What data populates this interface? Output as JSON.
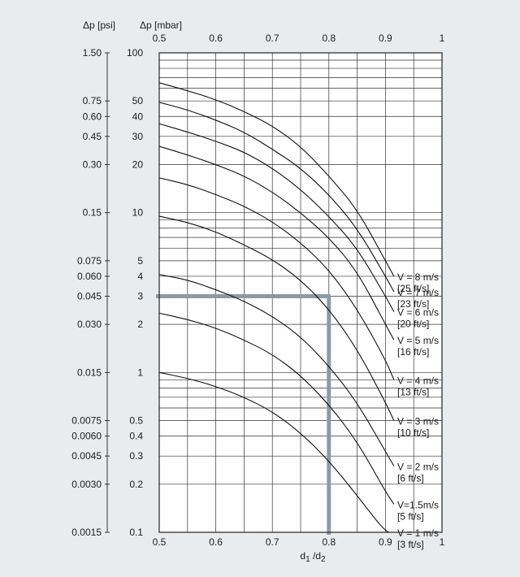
{
  "chart_data": {
    "type": "line",
    "y_scale": "log",
    "xlim": [
      0.5,
      1.0
    ],
    "ylim_mbar": [
      0.1,
      100
    ],
    "grid": true,
    "y_axis_label_mbar": "Δp [mbar]",
    "y_axis_label_psi": "Δp [psi]",
    "x_axis_label": "d1 /d2",
    "x_axis_label_main": "d",
    "x_axis_label_sub1": "1",
    "x_axis_label_mid": " /d",
    "x_axis_label_sub2": "2",
    "x_ticks": [
      0.5,
      0.6,
      0.7,
      0.8,
      0.9,
      1
    ],
    "x_tick_labels": [
      "0.5",
      "0.6",
      "0.7",
      "0.8",
      "0.9",
      "1"
    ],
    "y_ticks_mbar": [
      {
        "value": 100,
        "label": "100"
      },
      {
        "value": 50,
        "label": "50"
      },
      {
        "value": 40,
        "label": "40"
      },
      {
        "value": 30,
        "label": "30"
      },
      {
        "value": 20,
        "label": "20"
      },
      {
        "value": 10,
        "label": "10"
      },
      {
        "value": 5,
        "label": "5"
      },
      {
        "value": 4,
        "label": "4"
      },
      {
        "value": 3,
        "label": "3"
      },
      {
        "value": 2,
        "label": "2"
      },
      {
        "value": 1,
        "label": "1"
      },
      {
        "value": 0.5,
        "label": "0.5"
      },
      {
        "value": 0.4,
        "label": "0.4"
      },
      {
        "value": 0.3,
        "label": "0.3"
      },
      {
        "value": 0.2,
        "label": "0.2"
      },
      {
        "value": 0.1,
        "label": "0.1"
      }
    ],
    "y_ticks_psi": [
      {
        "mbar": 100,
        "label": "1.50"
      },
      {
        "mbar": 50,
        "label": "0.75"
      },
      {
        "mbar": 40,
        "label": "0.60"
      },
      {
        "mbar": 30,
        "label": "0.45"
      },
      {
        "mbar": 20,
        "label": "0.30"
      },
      {
        "mbar": 10,
        "label": "0.15"
      },
      {
        "mbar": 5,
        "label": "0.075"
      },
      {
        "mbar": 4,
        "label": "0.060"
      },
      {
        "mbar": 3,
        "label": "0.045"
      },
      {
        "mbar": 2,
        "label": "0.030"
      },
      {
        "mbar": 1,
        "label": "0.015"
      },
      {
        "mbar": 0.5,
        "label": "0.0075"
      },
      {
        "mbar": 0.4,
        "label": "0.0060"
      },
      {
        "mbar": 0.3,
        "label": "0.0045"
      },
      {
        "mbar": 0.2,
        "label": "0.0030"
      },
      {
        "mbar": 0.1,
        "label": "0.0015"
      }
    ],
    "series": [
      {
        "name_line1": "V = 8 m/s",
        "name_line2": "[25 ft/s]",
        "x": [
          0.5,
          0.55,
          0.6,
          0.65,
          0.7,
          0.75,
          0.8,
          0.85,
          0.9,
          0.915
        ],
        "y": [
          65,
          58,
          51,
          43,
          35,
          26,
          17,
          10.5,
          5.0,
          4.0
        ]
      },
      {
        "name_line1": "V = 7 m/s",
        "name_line2": "[23 ft/s]",
        "x": [
          0.5,
          0.55,
          0.6,
          0.65,
          0.7,
          0.75,
          0.8,
          0.85,
          0.9,
          0.915
        ],
        "y": [
          49,
          44,
          38,
          32,
          25,
          19,
          13,
          8,
          4.0,
          3.2
        ]
      },
      {
        "name_line1": "V = 6 m/s",
        "name_line2": "[20 ft/s]",
        "x": [
          0.5,
          0.55,
          0.6,
          0.65,
          0.7,
          0.75,
          0.8,
          0.85,
          0.9,
          0.915
        ],
        "y": [
          36,
          32,
          28,
          24,
          19,
          14,
          9.5,
          6,
          3.0,
          2.4
        ]
      },
      {
        "name_line1": "V = 5 m/s",
        "name_line2": "[16 ft/s]",
        "x": [
          0.5,
          0.55,
          0.6,
          0.65,
          0.7,
          0.75,
          0.8,
          0.85,
          0.9,
          0.915
        ],
        "y": [
          26,
          23,
          20,
          17,
          13.5,
          10,
          7,
          4.3,
          2.0,
          1.6
        ]
      },
      {
        "name_line1": "V = 4 m/s",
        "name_line2": "[13 ft/s]",
        "x": [
          0.5,
          0.55,
          0.6,
          0.65,
          0.7,
          0.75,
          0.8,
          0.85,
          0.9,
          0.915
        ],
        "y": [
          16.5,
          15,
          13,
          11,
          8.8,
          6.5,
          4.4,
          2.5,
          1.2,
          0.9
        ]
      },
      {
        "name_line1": "V = 3 m/s",
        "name_line2": "[10 ft/s]",
        "x": [
          0.5,
          0.55,
          0.6,
          0.65,
          0.7,
          0.75,
          0.8,
          0.85,
          0.9,
          0.915
        ],
        "y": [
          9.5,
          8.7,
          7.6,
          6.3,
          5.1,
          3.8,
          2.5,
          1.4,
          0.65,
          0.5
        ]
      },
      {
        "name_line1": "V = 2 m/s",
        "name_line2": "[6 ft/s]",
        "x": [
          0.5,
          0.55,
          0.6,
          0.65,
          0.7,
          0.75,
          0.8,
          0.85,
          0.9,
          0.915
        ],
        "y": [
          4.1,
          3.8,
          3.3,
          2.8,
          2.25,
          1.68,
          1.1,
          0.65,
          0.32,
          0.26
        ]
      },
      {
        "name_line1": "V=1.5m/s",
        "name_line2": "[5 ft/s]",
        "x": [
          0.5,
          0.55,
          0.6,
          0.65,
          0.7,
          0.75,
          0.8,
          0.85,
          0.9,
          0.915
        ],
        "y": [
          2.35,
          2.15,
          1.9,
          1.6,
          1.3,
          0.96,
          0.63,
          0.37,
          0.18,
          0.15
        ]
      },
      {
        "name_line1": "V = 1 m/s",
        "name_line2": "[3 ft/s]",
        "x": [
          0.5,
          0.55,
          0.6,
          0.65,
          0.7,
          0.75,
          0.8,
          0.85,
          0.9,
          0.915
        ],
        "y": [
          1.0,
          0.92,
          0.82,
          0.7,
          0.57,
          0.42,
          0.28,
          0.17,
          0.1,
          0.1
        ]
      }
    ],
    "reference_lines": {
      "y_mbar": 3,
      "x_d": 0.8
    },
    "colors": {
      "background": "#e9ecef",
      "plot": "#ffffff",
      "grid": "#333333",
      "reference": "#8c9aa6",
      "curve": "#111111"
    }
  }
}
